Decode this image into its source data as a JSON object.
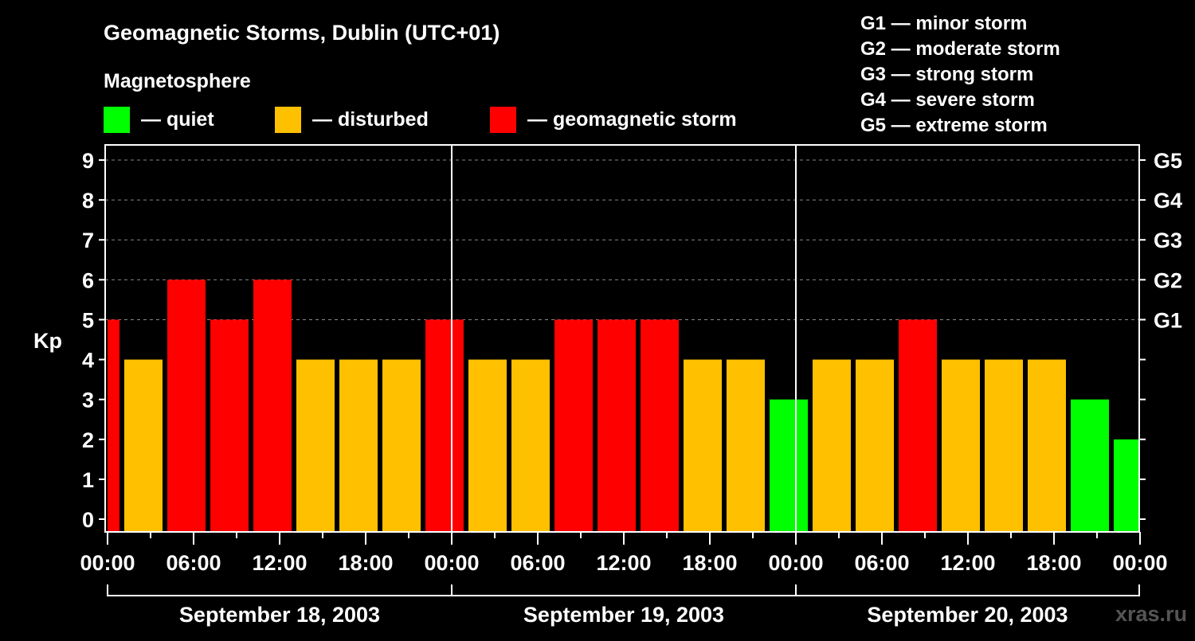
{
  "chart_data": {
    "type": "bar",
    "title": "Geomagnetic Storms, Dublin (UTC+01)",
    "legend_title": "Magnetosphere",
    "legend": [
      {
        "label": "— quiet",
        "color": "#00ff00"
      },
      {
        "label": "— disturbed",
        "color": "#ffc000"
      },
      {
        "label": "— geomagnetic storm",
        "color": "#ff0000"
      }
    ],
    "scale_legend": [
      "G1 — minor storm",
      "G2 — moderate storm",
      "G3 — strong storm",
      "G4 — severe storm",
      "G5 — extreme storm"
    ],
    "ylabel": "Kp",
    "ylim": [
      0,
      9
    ],
    "yticks": [
      "0",
      "1",
      "2",
      "3",
      "4",
      "5",
      "6",
      "7",
      "8",
      "9"
    ],
    "right_ticks": [
      {
        "kp": 5,
        "label": "G1"
      },
      {
        "kp": 6,
        "label": "G2"
      },
      {
        "kp": 7,
        "label": "G3"
      },
      {
        "kp": 8,
        "label": "G4"
      },
      {
        "kp": 9,
        "label": "G5"
      }
    ],
    "xticks": [
      "00:00",
      "06:00",
      "12:00",
      "18:00",
      "00:00",
      "06:00",
      "12:00",
      "18:00",
      "00:00",
      "06:00",
      "12:00",
      "18:00",
      "00:00"
    ],
    "days": [
      "September 18, 2003",
      "September 19, 2003",
      "September 20, 2003"
    ],
    "bar_interval_hours": 3,
    "bar_offset_hours": 1,
    "values": [
      5,
      4,
      6,
      5,
      6,
      4,
      4,
      4,
      5,
      4,
      4,
      5,
      5,
      5,
      4,
      4,
      3,
      4,
      4,
      5,
      4,
      4,
      4,
      3,
      2
    ],
    "colors": {
      "quiet": "#00ff00",
      "disturbed": "#ffc000",
      "storm": "#ff0000"
    },
    "watermark": "xras.ru",
    "grid": true
  }
}
